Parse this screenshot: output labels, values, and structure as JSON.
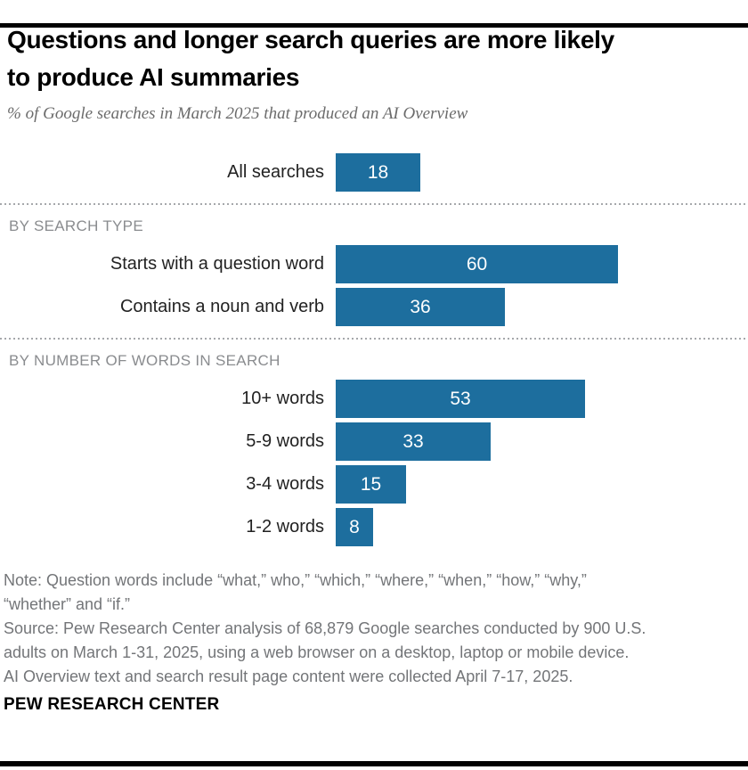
{
  "header": {
    "title_lines": [
      "Questions and longer search queries are more likely",
      "to produce AI summaries"
    ],
    "subtitle": "% of Google searches in March 2025 that produced an AI Overview"
  },
  "chart_data": {
    "type": "bar",
    "orientation": "horizontal",
    "value_unit": "% of Google searches that produced an AI Overview",
    "bar_color": "#1d6e9e",
    "value_label_color": "#ffffff",
    "groups": [
      {
        "header": "",
        "rows": [
          {
            "label": "All searches",
            "value": 18
          }
        ]
      },
      {
        "header": "BY SEARCH TYPE",
        "rows": [
          {
            "label": "Starts with a question word",
            "value": 60
          },
          {
            "label": "Contains a noun and verb",
            "value": 36
          }
        ]
      },
      {
        "header": "BY NUMBER OF WORDS IN SEARCH",
        "rows": [
          {
            "label": "10+ words",
            "value": 53
          },
          {
            "label": "5-9 words",
            "value": 33
          },
          {
            "label": "3-4 words",
            "value": 15
          },
          {
            "label": "1-2 words",
            "value": 8
          }
        ]
      }
    ]
  },
  "footnotes": {
    "note_lines": [
      "Note: Question words include “what,” who,” “which,” “where,” “when,” “how,” “why,”",
      "“whether” and “if.”"
    ],
    "source_lines": [
      "Source: Pew Research Center analysis of 68,879 Google searches conducted by 900 U.S.",
      "adults on March 1-31, 2025, using a web browser on a desktop, laptop or mobile device.",
      "AI Overview text and search result page content were collected April 7-17, 2025."
    ]
  },
  "footer": {
    "brand": "PEW RESEARCH CENTER"
  },
  "colors": {
    "bar": "#1d6e9e",
    "value_label": "#ffffff",
    "title": "#000000",
    "subtitle": "#6b6b6b",
    "category_label": "#222222",
    "section_header": "#8a8c8f",
    "note_text": "#737578",
    "rules": "#010101",
    "divider_dots": "#a6a8ab"
  }
}
